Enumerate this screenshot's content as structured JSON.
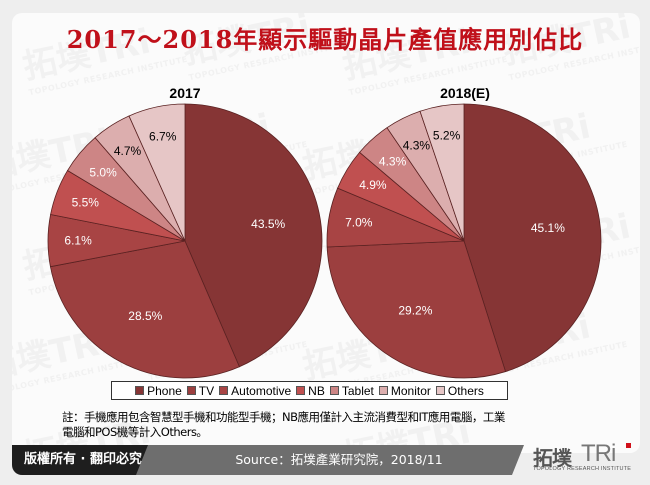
{
  "title": "2017～2018年顯示驅動晶片產值應用別佔比",
  "chart_data": [
    {
      "type": "pie",
      "title": "2017",
      "categories": [
        "Phone",
        "TV",
        "Automotive",
        "NB",
        "Tablet",
        "Monitor",
        "Others"
      ],
      "values": [
        43.5,
        28.5,
        6.1,
        5.5,
        5.0,
        4.7,
        6.7
      ],
      "labels": [
        "43.5%",
        "28.5%",
        "6.1%",
        "5.5%",
        "5.0%",
        "4.7%",
        "6.7%"
      ],
      "start_angle": "12 o'clock",
      "direction": "clockwise"
    },
    {
      "type": "pie",
      "title": "2018(E)",
      "categories": [
        "Phone",
        "TV",
        "Automotive",
        "NB",
        "Tablet",
        "Monitor",
        "Others"
      ],
      "values": [
        45.1,
        29.2,
        7.0,
        4.9,
        4.3,
        4.3,
        5.2
      ],
      "labels": [
        "45.1%",
        "29.2%",
        "7.0%",
        "4.9%",
        "4.3%",
        "4.3%",
        "5.2%"
      ],
      "start_angle": "12 o'clock",
      "direction": "clockwise"
    }
  ],
  "colors": {
    "Phone": "#863535",
    "TV": "#9c3f3f",
    "Automotive": "#a84444",
    "NB": "#c05050",
    "Tablet": "#cd8585",
    "Monitor": "#dcaeae",
    "Others": "#e6c6c6",
    "title": "#c0101a",
    "slice_border": "#5a2222"
  },
  "label_colors": {
    "Phone": "#ffffff",
    "TV": "#ffffff",
    "Automotive": "#ffffff",
    "NB": "#ffffff",
    "Tablet": "#ffffff",
    "Monitor": "#000000",
    "Others": "#000000"
  },
  "legend": {
    "items": [
      "Phone",
      "TV",
      "Automotive",
      "NB",
      "Tablet",
      "Monitor",
      "Others"
    ]
  },
  "note": {
    "line1": "註：手機應用包含智慧型手機和功能型手機；NB應用僅計入主流消費型和IT應用電腦，工業",
    "line2": "電腦和POS機等計入Others。"
  },
  "footer": {
    "copyright": "版權所有 · 翻印必究",
    "source": "Source：拓墣產業研究院，2018/11"
  },
  "logo": {
    "cn": "拓墣",
    "en": "TRi",
    "subtitle": "TOPOLOGY RESEARCH INSTITUTE"
  },
  "watermark": {
    "text": "拓墣TRi",
    "subtitle": "TOPOLOGY RESEARCH INSTITUTE"
  }
}
